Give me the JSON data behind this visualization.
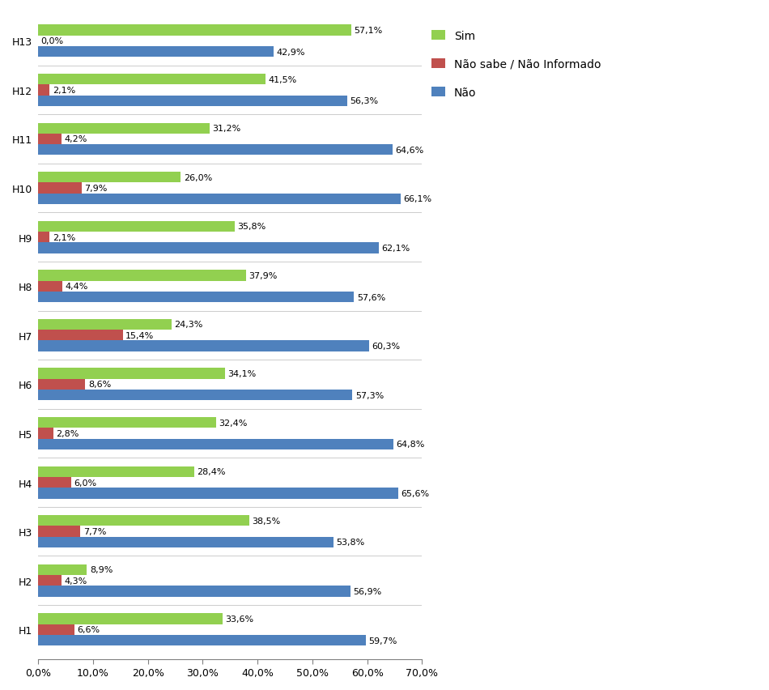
{
  "categories": [
    "H1",
    "H2",
    "H3",
    "H4",
    "H5",
    "H6",
    "H7",
    "H8",
    "H9",
    "H10",
    "H11",
    "H12",
    "H13"
  ],
  "sim": [
    33.6,
    8.9,
    38.5,
    28.4,
    32.4,
    34.1,
    24.3,
    37.9,
    35.8,
    26.0,
    31.2,
    41.5,
    57.1
  ],
  "nao_sabe": [
    6.6,
    4.3,
    7.7,
    6.0,
    2.8,
    8.6,
    15.4,
    4.4,
    2.1,
    7.9,
    4.2,
    2.1,
    0.0
  ],
  "nao": [
    59.7,
    56.9,
    53.8,
    65.6,
    64.8,
    57.3,
    60.3,
    57.6,
    62.1,
    66.1,
    64.6,
    56.3,
    42.9
  ],
  "color_sim": "#92d050",
  "color_nao_sabe": "#c0504d",
  "color_nao": "#4f81bd",
  "legend_sim": "Sim",
  "legend_nao_sabe": "Não sabe / Não Informado",
  "legend_nao": "Não",
  "xlim": [
    0,
    70
  ],
  "xticks": [
    0,
    10,
    20,
    30,
    40,
    50,
    60,
    70
  ],
  "xtick_labels": [
    "0,0%",
    "10,0%",
    "20,0%",
    "30,0%",
    "40,0%",
    "50,0%",
    "60,0%",
    "70,0%"
  ],
  "bar_height": 0.22,
  "bar_gap": 0.22,
  "label_fontsize": 8,
  "tick_fontsize": 9,
  "legend_fontsize": 10
}
